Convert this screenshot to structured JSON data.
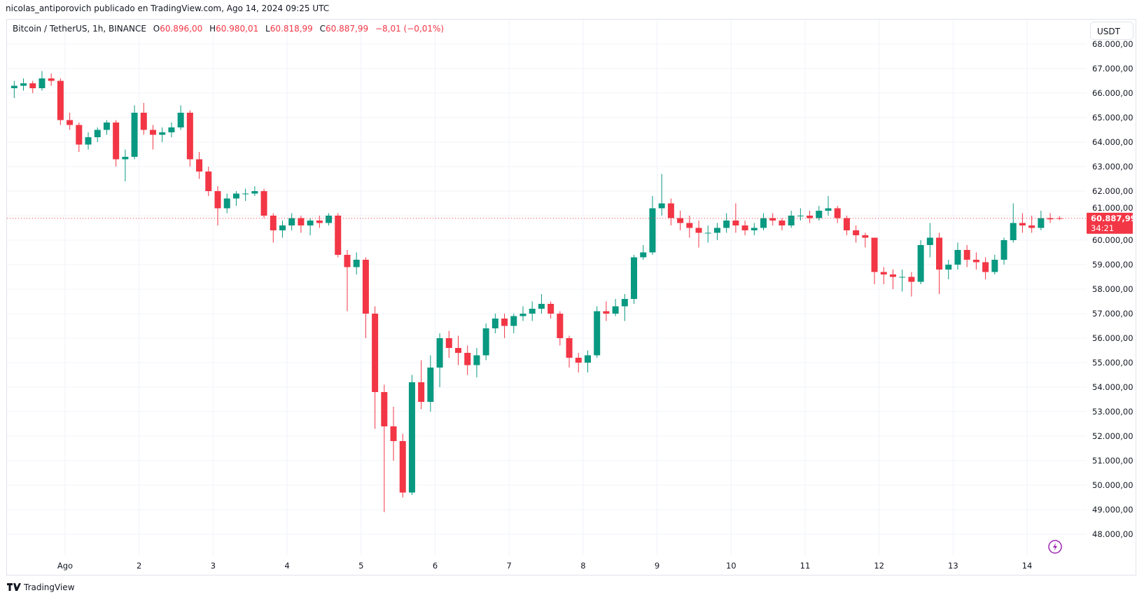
{
  "header": {
    "published": "nicolas_antiporovich publicado en TradingView.com, Ago 14, 2024 09:25 UTC"
  },
  "legend": {
    "symbol": "Bitcoin / TetherUS, 1h, BINANCE",
    "o_label": "O",
    "o": "60.896,00",
    "h_label": "H",
    "h": "60.980,01",
    "l_label": "L",
    "l": "60.818,99",
    "c_label": "C",
    "c": "60.887,99",
    "change": "−8,01 (−0,01%)"
  },
  "currency_button": "USDT",
  "last_price": {
    "price": "60.887,99",
    "countdown": "34:21",
    "value": 60887.99
  },
  "footer": {
    "brand": "TradingView"
  },
  "icons": {
    "lightning": "lightning-icon",
    "logo": "tradingview-logo-icon"
  },
  "colors": {
    "up": "#089981",
    "down": "#f23645",
    "grid": "#f0f3fa",
    "last_price": "#f23645",
    "lightning": "#9c27b0"
  },
  "chart_data": {
    "type": "candlestick",
    "title": "",
    "ylim": [
      47500,
      68200
    ],
    "yticks": [
      "48.000,00",
      "49.000,00",
      "50.000,00",
      "51.000,00",
      "52.000,00",
      "53.000,00",
      "54.000,00",
      "55.000,00",
      "56.000,00",
      "57.000,00",
      "58.000,00",
      "59.000,00",
      "60.000,00",
      "61.000,00",
      "62.000,00",
      "63.000,00",
      "64.000,00",
      "65.000,00",
      "66.000,00",
      "67.000,00",
      "68.000,00"
    ],
    "ytick_values": [
      48000,
      49000,
      50000,
      51000,
      52000,
      53000,
      54000,
      55000,
      56000,
      57000,
      58000,
      59000,
      60000,
      61000,
      62000,
      63000,
      64000,
      65000,
      66000,
      67000,
      68000
    ],
    "xticks": [
      "Ago",
      "2",
      "3",
      "4",
      "5",
      "6",
      "7",
      "8",
      "9",
      "10",
      "11",
      "12",
      "13",
      "14"
    ],
    "xtick_days": [
      1,
      2,
      3,
      4,
      5,
      6,
      7,
      8,
      9,
      10,
      11,
      12,
      13,
      14
    ],
    "grid": true,
    "candle_first": "2024-07-31 06:00 UTC",
    "candle_interval_hours": 3,
    "ohlc": [
      [
        66200,
        66500,
        65800,
        66300
      ],
      [
        66300,
        66600,
        66100,
        66400
      ],
      [
        66400,
        66500,
        66000,
        66200
      ],
      [
        66200,
        66900,
        66100,
        66600
      ],
      [
        66600,
        66800,
        66300,
        66500
      ],
      [
        66500,
        66600,
        64700,
        64900
      ],
      [
        64900,
        65200,
        64500,
        64700
      ],
      [
        64700,
        64800,
        63600,
        63900
      ],
      [
        63900,
        64400,
        63700,
        64200
      ],
      [
        64200,
        64600,
        64000,
        64500
      ],
      [
        64500,
        64900,
        64300,
        64800
      ],
      [
        64800,
        64900,
        63000,
        63300
      ],
      [
        63300,
        63700,
        62400,
        63400
      ],
      [
        63400,
        65500,
        63300,
        65200
      ],
      [
        65200,
        65600,
        64300,
        64500
      ],
      [
        64500,
        64700,
        63700,
        64300
      ],
      [
        64300,
        64600,
        64000,
        64400
      ],
      [
        64400,
        64800,
        64200,
        64600
      ],
      [
        64600,
        65500,
        64500,
        65200
      ],
      [
        65200,
        65300,
        63000,
        63300
      ],
      [
        63300,
        63600,
        62500,
        62800
      ],
      [
        62800,
        63000,
        61800,
        62000
      ],
      [
        62000,
        62200,
        60600,
        61300
      ],
      [
        61300,
        61900,
        61100,
        61700
      ],
      [
        61700,
        62000,
        61400,
        61900
      ],
      [
        61900,
        62100,
        61600,
        61900
      ],
      [
        61900,
        62200,
        61800,
        62000
      ],
      [
        62000,
        62100,
        60900,
        61000
      ],
      [
        61000,
        61100,
        59900,
        60400
      ],
      [
        60400,
        60800,
        60100,
        60600
      ],
      [
        60600,
        61100,
        60400,
        60900
      ],
      [
        60900,
        61000,
        60300,
        60600
      ],
      [
        60600,
        60900,
        60200,
        60800
      ],
      [
        60800,
        61000,
        60500,
        60700
      ],
      [
        60700,
        61100,
        60600,
        61000
      ],
      [
        61000,
        61100,
        59300,
        59400
      ],
      [
        59400,
        59600,
        57100,
        58900
      ],
      [
        58900,
        59500,
        58600,
        59200
      ],
      [
        59200,
        59300,
        56000,
        57000
      ],
      [
        57000,
        57300,
        52300,
        53800
      ],
      [
        53800,
        54100,
        48900,
        52400
      ],
      [
        52400,
        53200,
        51000,
        51800
      ],
      [
        51800,
        52100,
        49500,
        49700
      ],
      [
        49700,
        54500,
        49600,
        54200
      ],
      [
        54200,
        55100,
        53100,
        53400
      ],
      [
        53400,
        55300,
        53000,
        54800
      ],
      [
        54800,
        56200,
        54000,
        56000
      ],
      [
        56000,
        56300,
        55200,
        55600
      ],
      [
        55600,
        56100,
        54900,
        55400
      ],
      [
        55400,
        55700,
        54500,
        54900
      ],
      [
        54900,
        55600,
        54400,
        55300
      ],
      [
        55300,
        56600,
        55100,
        56400
      ],
      [
        56400,
        57000,
        56200,
        56800
      ],
      [
        56800,
        57000,
        56000,
        56500
      ],
      [
        56500,
        57000,
        56200,
        56900
      ],
      [
        56900,
        57300,
        56700,
        57000
      ],
      [
        57000,
        57500,
        56700,
        57200
      ],
      [
        57200,
        57800,
        57000,
        57400
      ],
      [
        57400,
        57500,
        56800,
        57000
      ],
      [
        57000,
        57100,
        55700,
        56000
      ],
      [
        56000,
        56100,
        54800,
        55200
      ],
      [
        55200,
        55400,
        54600,
        55000
      ],
      [
        55000,
        55500,
        54600,
        55300
      ],
      [
        55300,
        57300,
        55200,
        57100
      ],
      [
        57100,
        57500,
        56700,
        57000
      ],
      [
        57000,
        57600,
        56900,
        57300
      ],
      [
        57300,
        57800,
        56700,
        57600
      ],
      [
        57600,
        59400,
        57400,
        59300
      ],
      [
        59300,
        59800,
        59200,
        59500
      ],
      [
        59500,
        61800,
        59400,
        61300
      ],
      [
        61300,
        62700,
        61000,
        61500
      ],
      [
        61500,
        61700,
        60600,
        60900
      ],
      [
        60900,
        61200,
        60400,
        60700
      ],
      [
        60700,
        61000,
        60100,
        60500
      ],
      [
        60500,
        60800,
        59700,
        60300
      ],
      [
        60300,
        60600,
        59900,
        60300
      ],
      [
        60300,
        60700,
        60000,
        60500
      ],
      [
        60500,
        61100,
        60300,
        60800
      ],
      [
        60800,
        61500,
        60300,
        60600
      ],
      [
        60600,
        60800,
        60200,
        60400
      ],
      [
        60400,
        60700,
        60200,
        60500
      ],
      [
        60500,
        61100,
        60400,
        60900
      ],
      [
        60900,
        61100,
        60600,
        60800
      ],
      [
        60800,
        60900,
        60400,
        60600
      ],
      [
        60600,
        61200,
        60500,
        61000
      ],
      [
        61000,
        61300,
        60800,
        61000
      ],
      [
        61000,
        61200,
        60700,
        60900
      ],
      [
        60900,
        61400,
        60800,
        61200
      ],
      [
        61200,
        61800,
        61000,
        61300
      ],
      [
        61300,
        61400,
        60700,
        60900
      ],
      [
        60900,
        61000,
        60200,
        60400
      ],
      [
        60400,
        60600,
        59900,
        60200
      ],
      [
        60200,
        60300,
        59700,
        60100
      ],
      [
        60100,
        60100,
        58200,
        58700
      ],
      [
        58700,
        58900,
        58200,
        58600
      ],
      [
        58600,
        58800,
        58000,
        58500
      ],
      [
        58500,
        58800,
        57900,
        58500
      ],
      [
        58500,
        58700,
        57700,
        58300
      ],
      [
        58300,
        60000,
        58200,
        59800
      ],
      [
        59800,
        60700,
        59300,
        60100
      ],
      [
        60100,
        60300,
        57800,
        58800
      ],
      [
        58800,
        59200,
        58400,
        59000
      ],
      [
        59000,
        59900,
        58800,
        59600
      ],
      [
        59600,
        59800,
        58900,
        59200
      ],
      [
        59200,
        59500,
        58800,
        59100
      ],
      [
        59100,
        59300,
        58400,
        58700
      ],
      [
        58700,
        59400,
        58600,
        59200
      ],
      [
        59200,
        60100,
        59000,
        60000
      ],
      [
        60000,
        61500,
        59900,
        60700
      ],
      [
        60700,
        61100,
        60300,
        60600
      ],
      [
        60600,
        61000,
        60300,
        60500
      ],
      [
        60500,
        61200,
        60400,
        60900
      ],
      [
        60900,
        61100,
        60700,
        60850
      ],
      [
        60896,
        60980,
        60819,
        60888
      ]
    ]
  }
}
